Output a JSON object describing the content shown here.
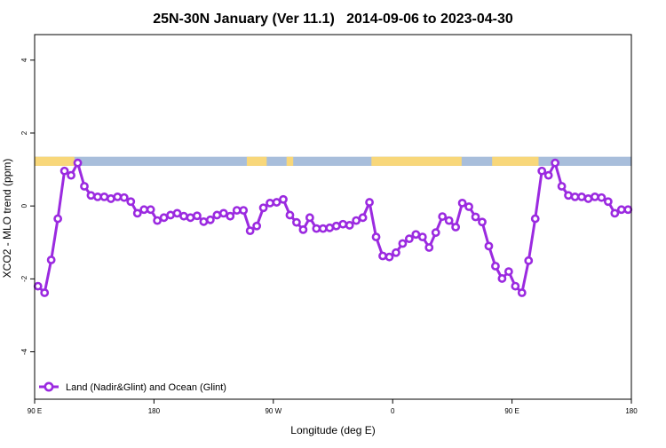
{
  "chart_data": {
    "type": "line",
    "title": "25N-30N January (Ver 11.1)   2014-09-06 to 2023-04-30",
    "xlabel": "Longitude (deg E)",
    "ylabel": "XCO2 - MLO trend (ppm)",
    "xlim": [
      90,
      540
    ],
    "ylim": [
      -5.3,
      4.7
    ],
    "x_ticks": [
      {
        "value": 90,
        "label": "90 E"
      },
      {
        "value": 180,
        "label": "180"
      },
      {
        "value": 270,
        "label": "90 W"
      },
      {
        "value": 360,
        "label": "0"
      },
      {
        "value": 450,
        "label": "90 E"
      },
      {
        "value": 540,
        "label": "180"
      }
    ],
    "y_ticks": [
      {
        "value": -4,
        "label": "-4"
      },
      {
        "value": -2,
        "label": "-2"
      },
      {
        "value": 0,
        "label": "0"
      },
      {
        "value": 2,
        "label": "2"
      },
      {
        "value": 4,
        "label": "4"
      }
    ],
    "grid": false,
    "legend_position": "bottom-left",
    "landmask": {
      "y_range": [
        1.1,
        1.35
      ],
      "ocean_color": "#a8bedb",
      "land_color": "#f8d77a",
      "land_segments": [
        [
          90,
          120
        ],
        [
          250,
          265
        ],
        [
          280,
          285
        ],
        [
          344,
          412
        ],
        [
          435,
          470
        ]
      ]
    },
    "series": [
      {
        "name": "Land (Nadir&Glint) and Ocean (Glint)",
        "color": "#9b2ae0",
        "x": [
          92.5,
          97.5,
          102.5,
          107.5,
          112.5,
          117.5,
          122.5,
          127.5,
          132.5,
          137.5,
          142.5,
          147.5,
          152.5,
          157.5,
          162.5,
          167.5,
          172.5,
          177.5,
          182.5,
          187.5,
          192.5,
          197.5,
          202.5,
          207.5,
          212.5,
          217.5,
          222.5,
          227.5,
          232.5,
          237.5,
          242.5,
          247.5,
          252.5,
          257.5,
          262.5,
          267.5,
          272.5,
          277.5,
          282.5,
          287.5,
          292.5,
          297.5,
          302.5,
          307.5,
          312.5,
          317.5,
          322.5,
          327.5,
          332.5,
          337.5,
          342.5,
          347.5,
          352.5,
          357.5,
          362.5,
          367.5,
          372.5,
          377.5,
          382.5,
          387.5,
          392.5,
          397.5,
          402.5,
          407.5,
          412.5,
          417.5,
          422.5,
          427.5,
          432.5,
          437.5,
          442.5,
          447.5,
          452.5,
          457.5,
          462.5,
          467.5,
          472.5,
          477.5,
          482.5,
          487.5,
          492.5,
          497.5,
          502.5,
          507.5,
          512.5,
          517.5,
          522.5,
          527.5,
          532.5,
          537.5
        ],
        "values": [
          -2.2,
          -2.38,
          -1.48,
          -0.35,
          0.96,
          0.84,
          1.18,
          0.54,
          0.29,
          0.25,
          0.25,
          0.2,
          0.25,
          0.23,
          0.12,
          -0.2,
          -0.1,
          -0.1,
          -0.4,
          -0.32,
          -0.25,
          -0.2,
          -0.28,
          -0.32,
          -0.27,
          -0.43,
          -0.38,
          -0.25,
          -0.2,
          -0.28,
          -0.12,
          -0.12,
          -0.68,
          -0.55,
          -0.05,
          0.08,
          0.1,
          0.18,
          -0.25,
          -0.45,
          -0.65,
          -0.32,
          -0.62,
          -0.62,
          -0.6,
          -0.55,
          -0.5,
          -0.53,
          -0.4,
          -0.32,
          0.1,
          -0.85,
          -1.37,
          -1.4,
          -1.28,
          -1.03,
          -0.9,
          -0.78,
          -0.85,
          -1.14,
          -0.73,
          -0.29,
          -0.4,
          -0.58,
          0.08,
          -0.02,
          -0.3,
          -0.44,
          -1.1,
          -1.65,
          -1.99,
          -1.8,
          -2.2,
          -2.38,
          -1.5,
          -0.35,
          0.96,
          0.84,
          1.18,
          0.54,
          0.29,
          0.25,
          0.25,
          0.2,
          0.25,
          0.23,
          0.12,
          -0.2,
          -0.1,
          -0.1
        ]
      }
    ]
  }
}
